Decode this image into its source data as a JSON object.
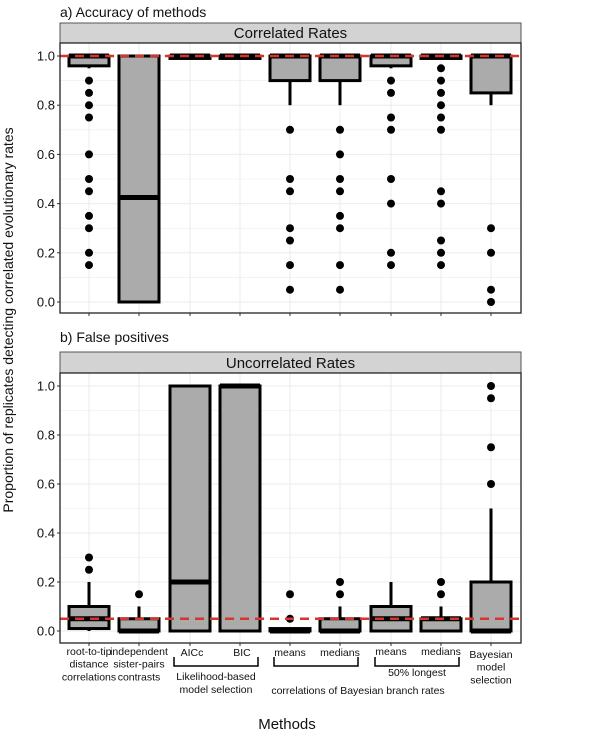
{
  "chart_data": {
    "type": "boxplot",
    "ylabel": "Proportion of replicates detecting correlated evolutionary rates",
    "xlabel": "Methods",
    "ylim": [
      0,
      1
    ],
    "yticks": [
      "0.0",
      "0.2",
      "0.4",
      "0.6",
      "0.8",
      "1.0"
    ],
    "grid": true,
    "categories": [
      {
        "lines": [
          "root-to-tip",
          "distance",
          "correlations"
        ]
      },
      {
        "lines": [
          "independent",
          "sister-pairs",
          "contrasts"
        ]
      },
      {
        "lines": [
          "AICc"
        ]
      },
      {
        "lines": [
          "BIC"
        ]
      },
      {
        "lines": [
          "means"
        ]
      },
      {
        "lines": [
          "medians"
        ]
      },
      {
        "lines": [
          "means"
        ]
      },
      {
        "lines": [
          "medians"
        ]
      },
      {
        "lines": [
          "Bayesian",
          "model",
          "selection"
        ]
      }
    ],
    "groups": [
      {
        "from": 2,
        "to": 3,
        "lines": [
          "Likelihood-based",
          "model selection"
        ]
      },
      {
        "from": 4,
        "to": 5,
        "lines": []
      },
      {
        "from": 6,
        "to": 7,
        "lines": [
          "50% longest"
        ]
      }
    ],
    "group_caption": "correlations of Bayesian branch rates",
    "panels": [
      {
        "title": "a) Accuracy of methods",
        "strip": "Correlated Rates",
        "reference_line": 1.0,
        "boxes": [
          {
            "q1": 0.96,
            "median": 1,
            "q3": 1,
            "wlo": 0.95,
            "whi": 1,
            "outliers": [
              0.9,
              0.85,
              0.8,
              0.75,
              0.6,
              0.5,
              0.45,
              0.35,
              0.3,
              0.2,
              0.15
            ]
          },
          {
            "q1": 0,
            "median": 0.425,
            "q3": 1,
            "wlo": 0,
            "whi": 1,
            "outliers": []
          },
          {
            "q1": 0.99,
            "median": 1,
            "q3": 1,
            "wlo": 1,
            "whi": 1,
            "outliers": []
          },
          {
            "q1": 0.99,
            "median": 1,
            "q3": 1,
            "wlo": 1,
            "whi": 1,
            "outliers": []
          },
          {
            "q1": 0.9,
            "median": 1,
            "q3": 1,
            "wlo": 0.8,
            "whi": 1,
            "outliers": [
              0.7,
              0.5,
              0.45,
              0.3,
              0.25,
              0.15,
              0.05
            ]
          },
          {
            "q1": 0.9,
            "median": 1,
            "q3": 1,
            "wlo": 0.8,
            "whi": 1,
            "outliers": [
              0.7,
              0.6,
              0.5,
              0.45,
              0.35,
              0.3,
              0.15,
              0.05
            ]
          },
          {
            "q1": 0.96,
            "median": 1,
            "q3": 1,
            "wlo": 0.95,
            "whi": 1,
            "outliers": [
              0.9,
              0.85,
              0.75,
              0.7,
              0.5,
              0.4,
              0.2,
              0.15
            ]
          },
          {
            "q1": 0.99,
            "median": 1,
            "q3": 1,
            "wlo": 1,
            "whi": 1,
            "outliers": [
              0.95,
              0.9,
              0.85,
              0.8,
              0.75,
              0.7,
              0.45,
              0.4,
              0.25,
              0.2,
              0.15
            ]
          },
          {
            "q1": 0.85,
            "median": 1,
            "q3": 1,
            "wlo": 0.8,
            "whi": 1,
            "outliers": [
              0.3,
              0.2,
              0.05,
              0.0
            ]
          }
        ]
      },
      {
        "title": "b) False positives",
        "strip": "Uncorrelated Rates",
        "reference_line": 0.05,
        "boxes": [
          {
            "q1": 0.01,
            "median": 0.05,
            "q3": 0.1,
            "wlo": 0,
            "whi": 0.2,
            "outliers": [
              0.3,
              0.25
            ]
          },
          {
            "q1": 0,
            "median": 0,
            "q3": 0.05,
            "wlo": 0,
            "whi": 0.1,
            "outliers": [
              0.15
            ]
          },
          {
            "q1": 0,
            "median": 0.2,
            "q3": 1,
            "wlo": 0,
            "whi": 1,
            "outliers": []
          },
          {
            "q1": 0,
            "median": 1,
            "q3": 1,
            "wlo": 0,
            "whi": 1,
            "outliers": []
          },
          {
            "q1": 0,
            "median": 0,
            "q3": 0.01,
            "wlo": 0,
            "whi": 0.01,
            "outliers": [
              0.15,
              0.05
            ]
          },
          {
            "q1": 0,
            "median": 0,
            "q3": 0.05,
            "wlo": 0,
            "whi": 0.1,
            "outliers": [
              0.2,
              0.15
            ]
          },
          {
            "q1": 0,
            "median": 0.05,
            "q3": 0.1,
            "wlo": 0,
            "whi": 0.2,
            "outliers": []
          },
          {
            "q1": 0,
            "median": 0.05,
            "q3": 0.05,
            "wlo": 0,
            "whi": 0.1,
            "outliers": [
              0.2,
              0.15
            ]
          },
          {
            "q1": 0,
            "median": 0,
            "q3": 0.2,
            "wlo": 0,
            "whi": 0.5,
            "outliers": [
              1.0,
              0.95,
              0.75,
              0.6
            ]
          }
        ]
      }
    ],
    "colors": {
      "box_fill": "#ababab",
      "strip_fill": "#d3d3d3",
      "reference": "#d9342b",
      "grid": "#ebebeb"
    }
  }
}
